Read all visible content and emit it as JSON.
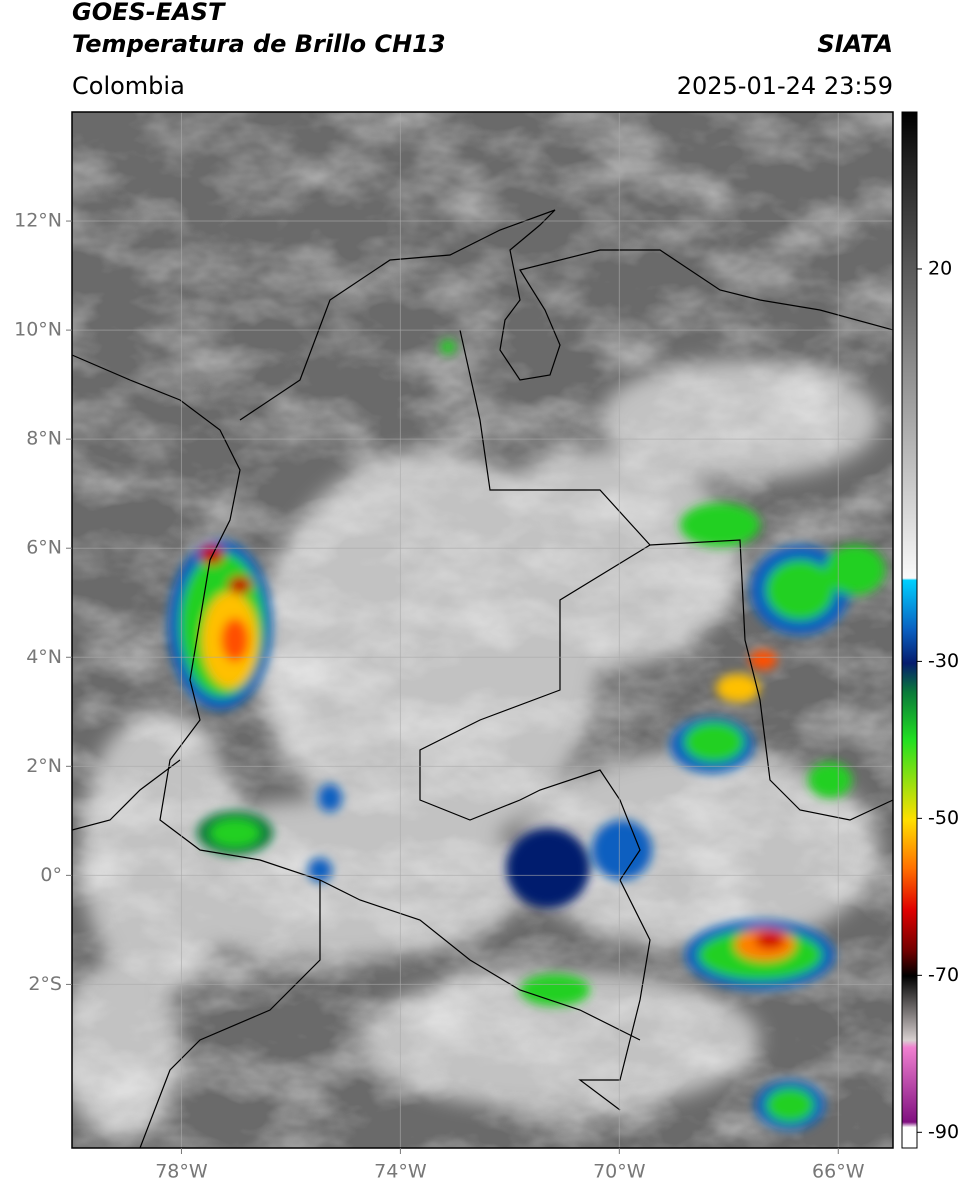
{
  "header": {
    "title": "GOES-EAST",
    "subtitle": "Temperatura de Brillo CH13",
    "source": "SIATA",
    "region": "Colombia",
    "datetime": "2025-01-24 23:59"
  },
  "map": {
    "xlim": [
      -80,
      -65
    ],
    "ylim": [
      -5,
      14
    ],
    "xticks": [
      {
        "value": -78,
        "label": "78°W"
      },
      {
        "value": -74,
        "label": "74°W"
      },
      {
        "value": -70,
        "label": "70°W"
      },
      {
        "value": -66,
        "label": "66°W"
      }
    ],
    "yticks": [
      {
        "value": 12,
        "label": "12°N"
      },
      {
        "value": 10,
        "label": "10°N"
      },
      {
        "value": 8,
        "label": "8°N"
      },
      {
        "value": 6,
        "label": "6°N"
      },
      {
        "value": 4,
        "label": "4°N"
      },
      {
        "value": 2,
        "label": "2°N"
      },
      {
        "value": 0,
        "label": "0°"
      },
      {
        "value": -2,
        "label": "2°S"
      }
    ],
    "grid": true
  },
  "colorbar": {
    "lim": [
      -92,
      40
    ],
    "ticks": [
      20,
      -30,
      -50,
      -70,
      -90
    ]
  }
}
